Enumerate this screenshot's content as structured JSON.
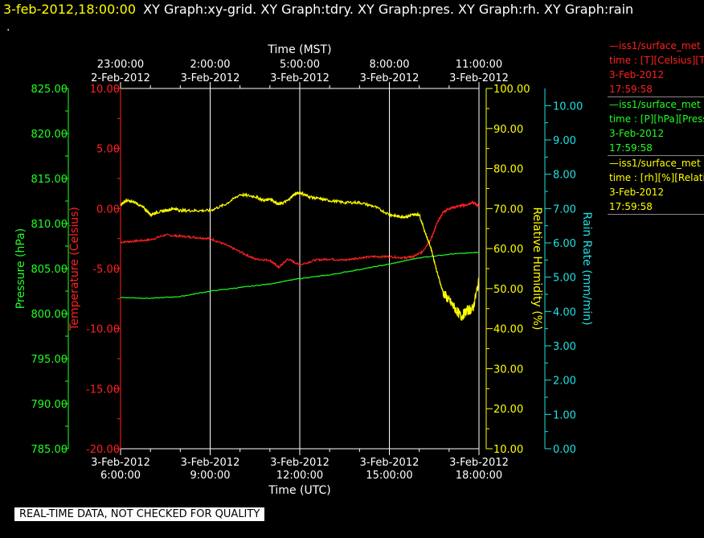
{
  "header": {
    "timestamp": "3-feb-2012,18:00:00",
    "graphs": "XY Graph:xy-grid.  XY Graph:tdry.  XY Graph:pres.  XY Graph:rh.  XY Graph:rain",
    "dot": "."
  },
  "footer": {
    "quality": "REAL-TIME DATA, NOT CHECKED FOR QUALITY"
  },
  "legend": [
    {
      "color": "#ff2020",
      "lines": [
        "—iss1/surface_met",
        "time : [T][Celsius][T",
        "3-Feb-2012",
        "17:59:58"
      ]
    },
    {
      "color": "#20ff20",
      "lines": [
        "—iss1/surface_met",
        "time : [P][hPa][Press",
        "3-Feb-2012",
        "17:59:58"
      ]
    },
    {
      "color": "#ffff00",
      "lines": [
        "—iss1/surface_met",
        "time : [rh][%][Relati",
        "3-Feb-2012",
        "17:59:58"
      ]
    }
  ],
  "chart_data": {
    "type": "line",
    "top_axis": {
      "title": "Time (MST)",
      "ticks": [
        [
          "23:00:00",
          "2-Feb-2012"
        ],
        [
          "2:00:00",
          "3-Feb-2012"
        ],
        [
          "5:00:00",
          "3-Feb-2012"
        ],
        [
          "8:00:00",
          "3-Feb-2012"
        ],
        [
          "11:00:00",
          "3-Feb-2012"
        ]
      ]
    },
    "bottom_axis": {
      "title": "Time (UTC)",
      "ticks": [
        [
          "3-Feb-2012",
          "6:00:00"
        ],
        [
          "3-Feb-2012",
          "9:00:00"
        ],
        [
          "3-Feb-2012",
          "12:00:00"
        ],
        [
          "3-Feb-2012",
          "15:00:00"
        ],
        [
          "3-Feb-2012",
          "18:00:00"
        ]
      ],
      "tick_hours": [
        6,
        9,
        12,
        15,
        18
      ],
      "xlim": [
        6,
        18
      ]
    },
    "axes": {
      "pressure": {
        "label": "Pressure (hPa)",
        "color": "#20ff20",
        "ylim": [
          785,
          825
        ],
        "ticks": [
          "785.00",
          "790.00",
          "795.00",
          "800.00",
          "805.00",
          "810.00",
          "815.00",
          "820.00",
          "825.00"
        ]
      },
      "temperature": {
        "label": "Temperature (Celsius)",
        "color": "#ff2020",
        "ylim": [
          -20,
          10
        ],
        "ticks": [
          "-20.00",
          "-15.00",
          "-10.00",
          "-5.00",
          "0.00",
          "5.00",
          "10.00"
        ]
      },
      "rh": {
        "label": "Relative Humidity (%)",
        "color": "#ffff00",
        "ylim": [
          10,
          100
        ],
        "ticks": [
          "10.00",
          "20.00",
          "30.00",
          "40.00",
          "50.00",
          "60.00",
          "70.00",
          "80.00",
          "90.00",
          "100.00"
        ]
      },
      "rain": {
        "label": "Rain Rate (mm/min)",
        "color": "#20e0e0",
        "ylim": [
          0,
          10.5
        ],
        "ticks": [
          "0.00",
          "1.00",
          "2.00",
          "3.00",
          "4.00",
          "5.00",
          "6.00",
          "7.00",
          "8.00",
          "9.00",
          "10.00"
        ]
      }
    },
    "series": [
      {
        "name": "temperature",
        "color": "#ff2020",
        "x": [
          6.0,
          6.5,
          7.0,
          7.5,
          8.0,
          8.5,
          9.0,
          9.5,
          10.0,
          10.5,
          11.0,
          11.3,
          11.6,
          12.0,
          12.5,
          13.0,
          13.5,
          14.0,
          14.5,
          15.0,
          15.5,
          15.8,
          16.1,
          16.4,
          16.6,
          16.8,
          17.0,
          17.3,
          17.6,
          17.8,
          18.0
        ],
        "y": [
          -2.8,
          -2.7,
          -2.6,
          -2.2,
          -2.3,
          -2.4,
          -2.5,
          -3.0,
          -3.6,
          -4.2,
          -4.3,
          -4.9,
          -4.2,
          -4.7,
          -4.3,
          -4.2,
          -4.3,
          -4.1,
          -4.0,
          -4.0,
          -4.1,
          -4.0,
          -3.6,
          -2.5,
          -1.2,
          -0.3,
          0.0,
          0.2,
          0.3,
          0.5,
          0.2
        ]
      },
      {
        "name": "pressure",
        "color": "#20ff20",
        "x": [
          6.0,
          7.0,
          8.0,
          9.0,
          10.0,
          11.0,
          12.0,
          13.0,
          14.0,
          15.0,
          16.0,
          17.0,
          18.0
        ],
        "y": [
          801.8,
          801.7,
          801.9,
          802.5,
          802.9,
          803.3,
          803.9,
          804.3,
          804.9,
          805.5,
          806.2,
          806.6,
          806.8
        ]
      },
      {
        "name": "rh",
        "color": "#ffff00",
        "x": [
          6.0,
          6.2,
          6.5,
          6.8,
          7.0,
          7.2,
          7.5,
          7.8,
          8.0,
          8.5,
          9.0,
          9.5,
          10.0,
          10.5,
          10.8,
          11.0,
          11.3,
          11.6,
          11.8,
          12.0,
          12.3,
          12.6,
          13.0,
          13.5,
          14.0,
          14.5,
          15.0,
          15.3,
          15.6,
          15.8,
          16.0,
          16.2,
          16.4,
          16.6,
          16.8,
          17.0,
          17.2,
          17.4,
          17.6,
          17.8,
          18.0
        ],
        "y": [
          71.0,
          72.0,
          71.5,
          70.0,
          68.5,
          69.0,
          69.5,
          70.0,
          69.5,
          69.5,
          69.5,
          71.0,
          73.5,
          73.0,
          72.0,
          72.5,
          71.0,
          72.0,
          73.5,
          74.0,
          73.0,
          72.5,
          72.0,
          71.5,
          71.5,
          70.5,
          68.5,
          68.0,
          68.0,
          68.5,
          68.5,
          64.0,
          60.0,
          54.0,
          49.0,
          47.0,
          45.0,
          43.0,
          44.5,
          45.0,
          52.0
        ]
      }
    ]
  }
}
